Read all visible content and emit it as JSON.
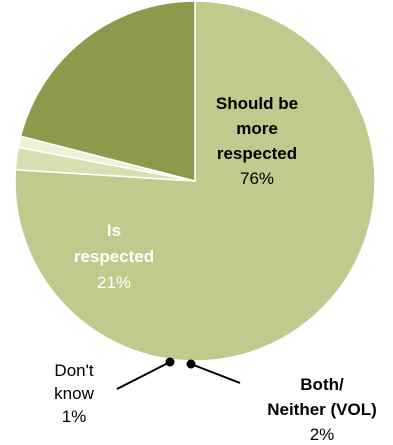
{
  "chart_data": {
    "type": "pie",
    "slices": [
      {
        "label_lines": [
          "Should be",
          "more",
          "respected"
        ],
        "value": 76,
        "value_label": "76%",
        "color": "#c2c98d",
        "text_color": "#000000"
      },
      {
        "label_lines": [
          "Both/",
          "Neither (VOL)"
        ],
        "value": 2,
        "value_label": "2%",
        "color": "#d8dfb1",
        "text_color": "#000000"
      },
      {
        "label_lines": [
          "Don't",
          "know"
        ],
        "value": 1,
        "value_label": "1%",
        "color": "#eef1d6",
        "text_color": "#000000"
      },
      {
        "label_lines": [
          "Is",
          "respected"
        ],
        "value": 21,
        "value_label": "21%",
        "color": "#8c9a4c",
        "text_color": "#ffffff"
      }
    ],
    "colors": {
      "leader_line": "#000000",
      "slice_border": "#ffffff"
    }
  }
}
